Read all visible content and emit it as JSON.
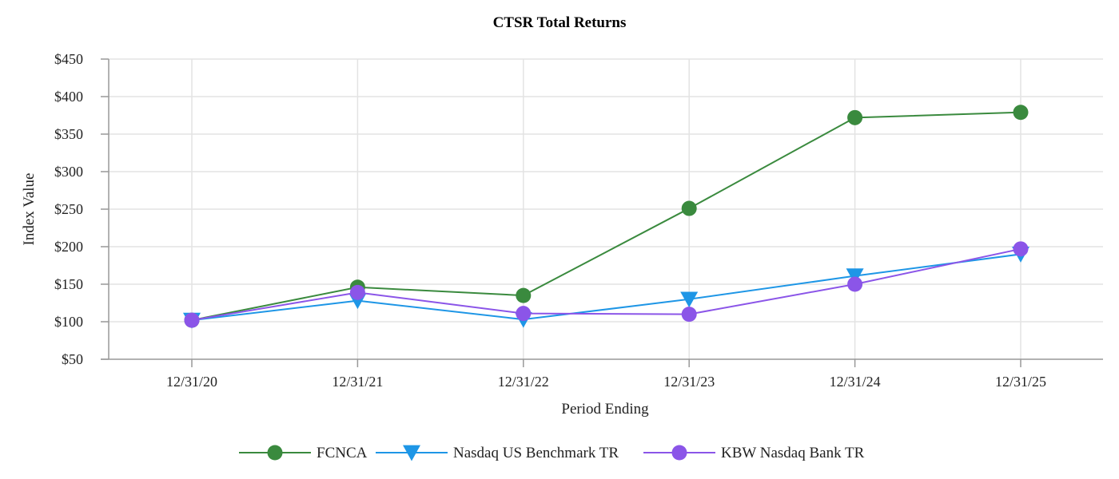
{
  "chart_data": {
    "type": "line",
    "title": "CTSR Total Returns",
    "xlabel": "Period Ending",
    "ylabel": "Index Value",
    "categories": [
      "12/31/20",
      "12/31/21",
      "12/31/22",
      "12/31/23",
      "12/31/24",
      "12/31/25"
    ],
    "ylim": [
      50,
      450
    ],
    "yticks": [
      50,
      100,
      150,
      200,
      250,
      300,
      350,
      400,
      450
    ],
    "ytick_labels": [
      "$50",
      "$100",
      "$150",
      "$200",
      "$250",
      "$300",
      "$350",
      "$400",
      "$450"
    ],
    "grid": true,
    "legend_position": "bottom-center",
    "series": [
      {
        "name": "FCNCA",
        "color": "#3a8a3e",
        "marker": "circle",
        "values": [
          102,
          146,
          135,
          251,
          372,
          379
        ]
      },
      {
        "name": "Nasdaq US Benchmark TR",
        "color": "#1e96e6",
        "marker": "triangle-down",
        "values": [
          102,
          128,
          103,
          130,
          161,
          190
        ]
      },
      {
        "name": "KBW Nasdaq Bank TR",
        "color": "#8b55e8",
        "marker": "circle",
        "values": [
          102,
          139,
          111,
          110,
          150,
          197
        ]
      }
    ]
  }
}
